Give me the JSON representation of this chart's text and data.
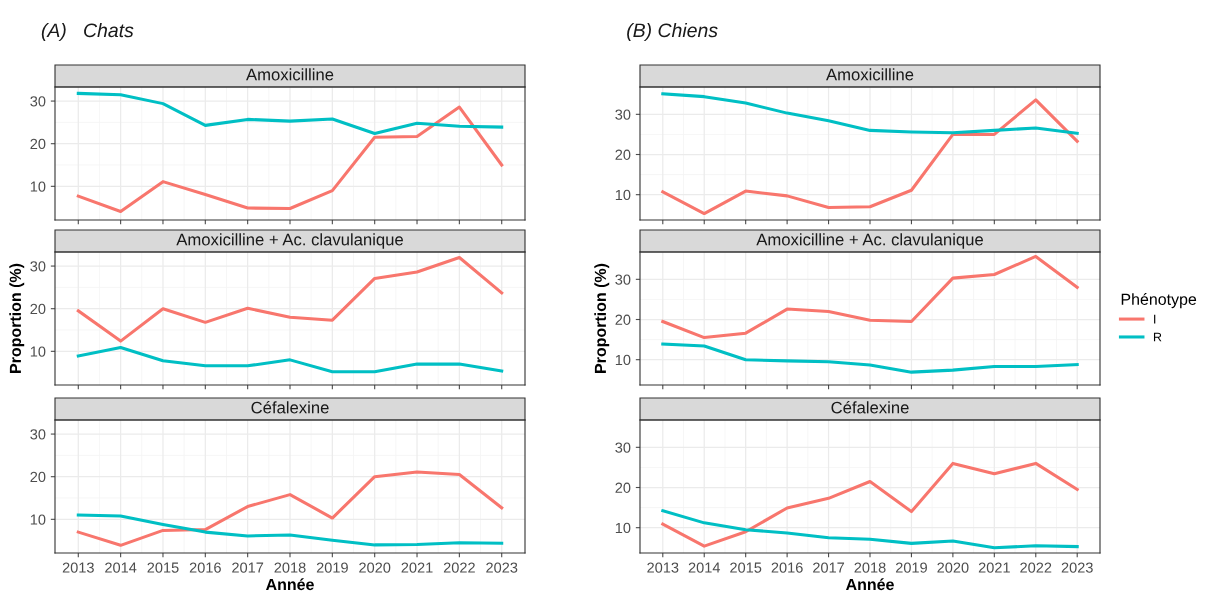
{
  "chart_data": [
    {
      "type": "line",
      "subtitle": "(A)   Chats",
      "title": "Amoxicilline",
      "x": [
        2013,
        2014,
        2015,
        2016,
        2017,
        2018,
        2019,
        2020,
        2021,
        2022,
        2023
      ],
      "xlim": [
        2012.45,
        2023.55
      ],
      "xticks": [
        2013,
        2014,
        2015,
        2016,
        2017,
        2018,
        2019,
        2020,
        2021,
        2022,
        2023
      ],
      "ylim": [
        2.1,
        33.3
      ],
      "yticks": [
        10,
        20,
        30
      ],
      "grid": true,
      "tick_labels": "y",
      "series": [
        {
          "color": "#f8766d",
          "values": [
            7.7,
            4.1,
            11.1,
            8.1,
            4.9,
            4.8,
            9.0,
            21.5,
            21.7,
            28.6,
            15.0
          ]
        },
        {
          "color": "#00bfc4",
          "values": [
            31.8,
            31.5,
            29.4,
            24.3,
            25.7,
            25.3,
            25.8,
            22.4,
            24.8,
            24.1,
            23.9
          ]
        }
      ]
    },
    {
      "type": "line",
      "title": "Amoxicilline + Ac. clavulanique",
      "ylabel": "Proportion (%)",
      "x": [
        2013,
        2014,
        2015,
        2016,
        2017,
        2018,
        2019,
        2020,
        2021,
        2022,
        2023
      ],
      "xlim": [
        2012.45,
        2023.55
      ],
      "xticks": [
        2013,
        2014,
        2015,
        2016,
        2017,
        2018,
        2019,
        2020,
        2021,
        2022,
        2023
      ],
      "ylim": [
        2.1,
        33.3
      ],
      "yticks": [
        10,
        20,
        30
      ],
      "grid": true,
      "tick_labels": "y",
      "series": [
        {
          "color": "#f8766d",
          "values": [
            19.5,
            12.4,
            20.0,
            16.8,
            20.1,
            18.0,
            17.3,
            27.1,
            28.6,
            32.0,
            23.7
          ]
        },
        {
          "color": "#00bfc4",
          "values": [
            8.9,
            10.9,
            7.8,
            6.6,
            6.6,
            8.0,
            5.2,
            5.2,
            7.0,
            7.0,
            5.4
          ]
        }
      ]
    },
    {
      "type": "line",
      "title": "Céfalexine",
      "xlabel": "Année",
      "x": [
        2013,
        2014,
        2015,
        2016,
        2017,
        2018,
        2019,
        2020,
        2021,
        2022,
        2023
      ],
      "xlim": [
        2012.45,
        2023.55
      ],
      "xticks": [
        2013,
        2014,
        2015,
        2016,
        2017,
        2018,
        2019,
        2020,
        2021,
        2022,
        2023
      ],
      "ylim": [
        2.1,
        33.3
      ],
      "yticks": [
        10,
        20,
        30
      ],
      "grid": true,
      "series": [
        {
          "color": "#f8766d",
          "values": [
            7.0,
            3.9,
            7.4,
            7.6,
            13.0,
            15.8,
            10.3,
            20.0,
            21.1,
            20.5,
            12.7
          ]
        },
        {
          "color": "#00bfc4",
          "values": [
            11.0,
            10.8,
            8.8,
            7.0,
            6.1,
            6.3,
            5.1,
            4.0,
            4.1,
            4.5,
            4.4
          ]
        }
      ]
    },
    {
      "type": "line",
      "subtitle": "(B) Chiens",
      "title": "Amoxicilline",
      "x": [
        2013,
        2014,
        2015,
        2016,
        2017,
        2018,
        2019,
        2020,
        2021,
        2022,
        2023
      ],
      "xlim": [
        2012.45,
        2023.55
      ],
      "xticks": [
        2013,
        2014,
        2015,
        2016,
        2017,
        2018,
        2019,
        2020,
        2021,
        2022,
        2023
      ],
      "ylim": [
        3.7,
        36.8
      ],
      "yticks": [
        10,
        20,
        30
      ],
      "grid": true,
      "tick_labels": "y",
      "series": [
        {
          "color": "#f8766d",
          "values": [
            10.7,
            5.3,
            10.9,
            9.7,
            6.8,
            7.0,
            11.1,
            25.0,
            25.0,
            33.6,
            23.3
          ]
        },
        {
          "color": "#00bfc4",
          "values": [
            35.1,
            34.4,
            32.8,
            30.3,
            28.4,
            26.0,
            25.6,
            25.4,
            26.0,
            26.6,
            25.3
          ]
        }
      ]
    },
    {
      "type": "line",
      "title": "Amoxicilline + Ac. clavulanique",
      "ylabel": "Proportion (%)",
      "legend_title": "Phénotype",
      "legend": "right",
      "x": [
        2013,
        2014,
        2015,
        2016,
        2017,
        2018,
        2019,
        2020,
        2021,
        2022,
        2023
      ],
      "xlim": [
        2012.45,
        2023.55
      ],
      "xticks": [
        2013,
        2014,
        2015,
        2016,
        2017,
        2018,
        2019,
        2020,
        2021,
        2022,
        2023
      ],
      "ylim": [
        3.7,
        36.8
      ],
      "yticks": [
        10,
        20,
        30
      ],
      "grid": true,
      "tick_labels": "y",
      "series": [
        {
          "name": "I",
          "color": "#f8766d",
          "values": [
            19.5,
            15.5,
            16.6,
            22.6,
            22.0,
            19.8,
            19.5,
            30.3,
            31.2,
            35.7,
            28.0
          ]
        },
        {
          "name": "R",
          "color": "#00bfc4",
          "values": [
            13.9,
            13.4,
            10.0,
            9.7,
            9.5,
            8.7,
            6.9,
            7.4,
            8.3,
            8.3,
            8.8
          ]
        }
      ]
    },
    {
      "type": "line",
      "title": "Céfalexine",
      "xlabel": "Année",
      "x": [
        2013,
        2014,
        2015,
        2016,
        2017,
        2018,
        2019,
        2020,
        2021,
        2022,
        2023
      ],
      "xlim": [
        2012.45,
        2023.55
      ],
      "xticks": [
        2013,
        2014,
        2015,
        2016,
        2017,
        2018,
        2019,
        2020,
        2021,
        2022,
        2023
      ],
      "ylim": [
        3.7,
        36.8
      ],
      "yticks": [
        10,
        20,
        30
      ],
      "grid": true,
      "series": [
        {
          "color": "#f8766d",
          "values": [
            10.9,
            5.4,
            9.0,
            14.9,
            17.3,
            21.5,
            14.0,
            26.0,
            23.4,
            26.0,
            19.5
          ]
        },
        {
          "color": "#00bfc4",
          "values": [
            14.2,
            11.2,
            9.5,
            8.7,
            7.5,
            7.1,
            6.1,
            6.7,
            5.0,
            5.5,
            5.3
          ]
        }
      ]
    }
  ]
}
